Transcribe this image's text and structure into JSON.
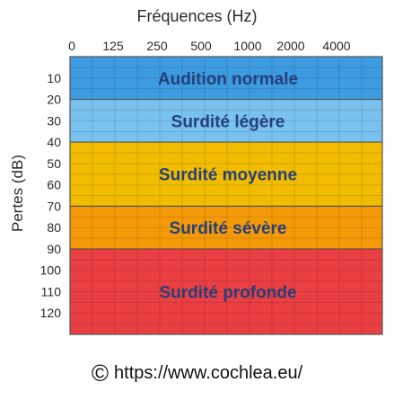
{
  "chart_data": {
    "type": "table",
    "xlabel": "Fréquences (Hz)",
    "ylabel": "Pertes (dB)",
    "x_ticks": [
      "0",
      "125",
      "250",
      "500",
      "1000",
      "2000",
      "4000"
    ],
    "y_ticks": [
      "10",
      "20",
      "30",
      "40",
      "50",
      "60",
      "70",
      "80",
      "90",
      "100",
      "110",
      "120"
    ],
    "ylim": [
      0,
      130
    ],
    "y_inverted": true,
    "grid": true,
    "bands": [
      {
        "label": "Audition normale",
        "from": 0,
        "to": 20,
        "color": "#3d9be0"
      },
      {
        "label": "Surdité légère",
        "from": 20,
        "to": 40,
        "color": "#79c2ee"
      },
      {
        "label": "Surdité moyenne",
        "from": 40,
        "to": 70,
        "color": "#f2bd00"
      },
      {
        "label": "Surdité sévère",
        "from": 70,
        "to": 90,
        "color": "#f49a08"
      },
      {
        "label": "Surdité profonde",
        "from": 90,
        "to": 130,
        "color": "#ea3f43"
      }
    ]
  },
  "copyright": {
    "symbol": "©",
    "text": "https://www.cochlea.eu/"
  }
}
